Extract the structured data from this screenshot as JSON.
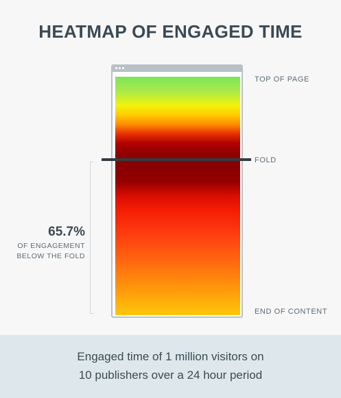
{
  "title": "HEATMAP OF ENGAGED TIME",
  "labels": {
    "top": "TOP OF PAGE",
    "fold": "FOLD",
    "end": "END OF CONTENT"
  },
  "stat": {
    "value": "65.7%",
    "caption_line1": "OF ENGAGEMENT",
    "caption_line2": "BELOW THE FOLD"
  },
  "footer": {
    "line1": "Engaged time of 1 million visitors on",
    "line2": "10 publishers over a 24 hour period"
  },
  "chart_data": {
    "type": "heatmap",
    "title": "HEATMAP OF ENGAGED TIME",
    "axis": "page scroll depth (top of page to end of content)",
    "fold_position": 0.35,
    "below_fold_engagement_percent": 65.7,
    "gradient_stops": [
      {
        "depth": 0.0,
        "color": "#7de45c"
      },
      {
        "depth": 0.06,
        "color": "#a9ea4a"
      },
      {
        "depth": 0.12,
        "color": "#f2f20c"
      },
      {
        "depth": 0.16,
        "color": "#ffcc00"
      },
      {
        "depth": 0.2,
        "color": "#ff8c00"
      },
      {
        "depth": 0.24,
        "color": "#e63000"
      },
      {
        "depth": 0.28,
        "color": "#b00000"
      },
      {
        "depth": 0.32,
        "color": "#900000"
      },
      {
        "depth": 0.38,
        "color": "#880000"
      },
      {
        "depth": 0.44,
        "color": "#950000"
      },
      {
        "depth": 0.5,
        "color": "#d80d00"
      },
      {
        "depth": 0.56,
        "color": "#f51d05"
      },
      {
        "depth": 0.66,
        "color": "#ff3c10"
      },
      {
        "depth": 0.78,
        "color": "#ff6a10"
      },
      {
        "depth": 0.9,
        "color": "#ff9c0c"
      },
      {
        "depth": 1.0,
        "color": "#ffc60a"
      }
    ]
  }
}
